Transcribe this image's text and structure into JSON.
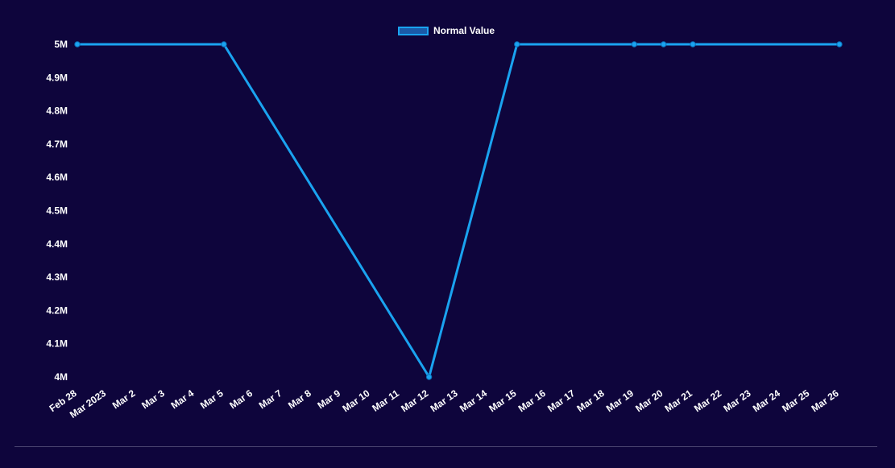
{
  "chart_data": {
    "type": "line",
    "title": "",
    "xlabel": "",
    "ylabel": "",
    "legend_position": "top-center",
    "grid": false,
    "categories": [
      "Feb 28",
      "Mar 2023",
      "Mar 2",
      "Mar 3",
      "Mar 4",
      "Mar 5",
      "Mar 6",
      "Mar 7",
      "Mar 8",
      "Mar 9",
      "Mar 10",
      "Mar 11",
      "Mar 12",
      "Mar 13",
      "Mar 14",
      "Mar 15",
      "Mar 16",
      "Mar 17",
      "Mar 18",
      "Mar 19",
      "Mar 20",
      "Mar 21",
      "Mar 22",
      "Mar 23",
      "Mar 24",
      "Mar 25",
      "Mar 26"
    ],
    "x": [
      "Feb 28",
      "Mar 5",
      "Mar 12",
      "Mar 15",
      "Mar 19",
      "Mar 20",
      "Mar 21",
      "Mar 26"
    ],
    "series": [
      {
        "name": "Normal Value",
        "color": "#1aa3f0",
        "values": [
          5000000,
          5000000,
          4000000,
          5000000,
          5000000,
          5000000,
          5000000,
          5000000
        ]
      }
    ],
    "yticks": [
      "5M",
      "4.9M",
      "4.8M",
      "4.7M",
      "4.6M",
      "4.5M",
      "4.4M",
      "4.3M",
      "4.2M",
      "4.1M",
      "4M"
    ],
    "ylim": [
      4000000,
      5000000
    ]
  }
}
